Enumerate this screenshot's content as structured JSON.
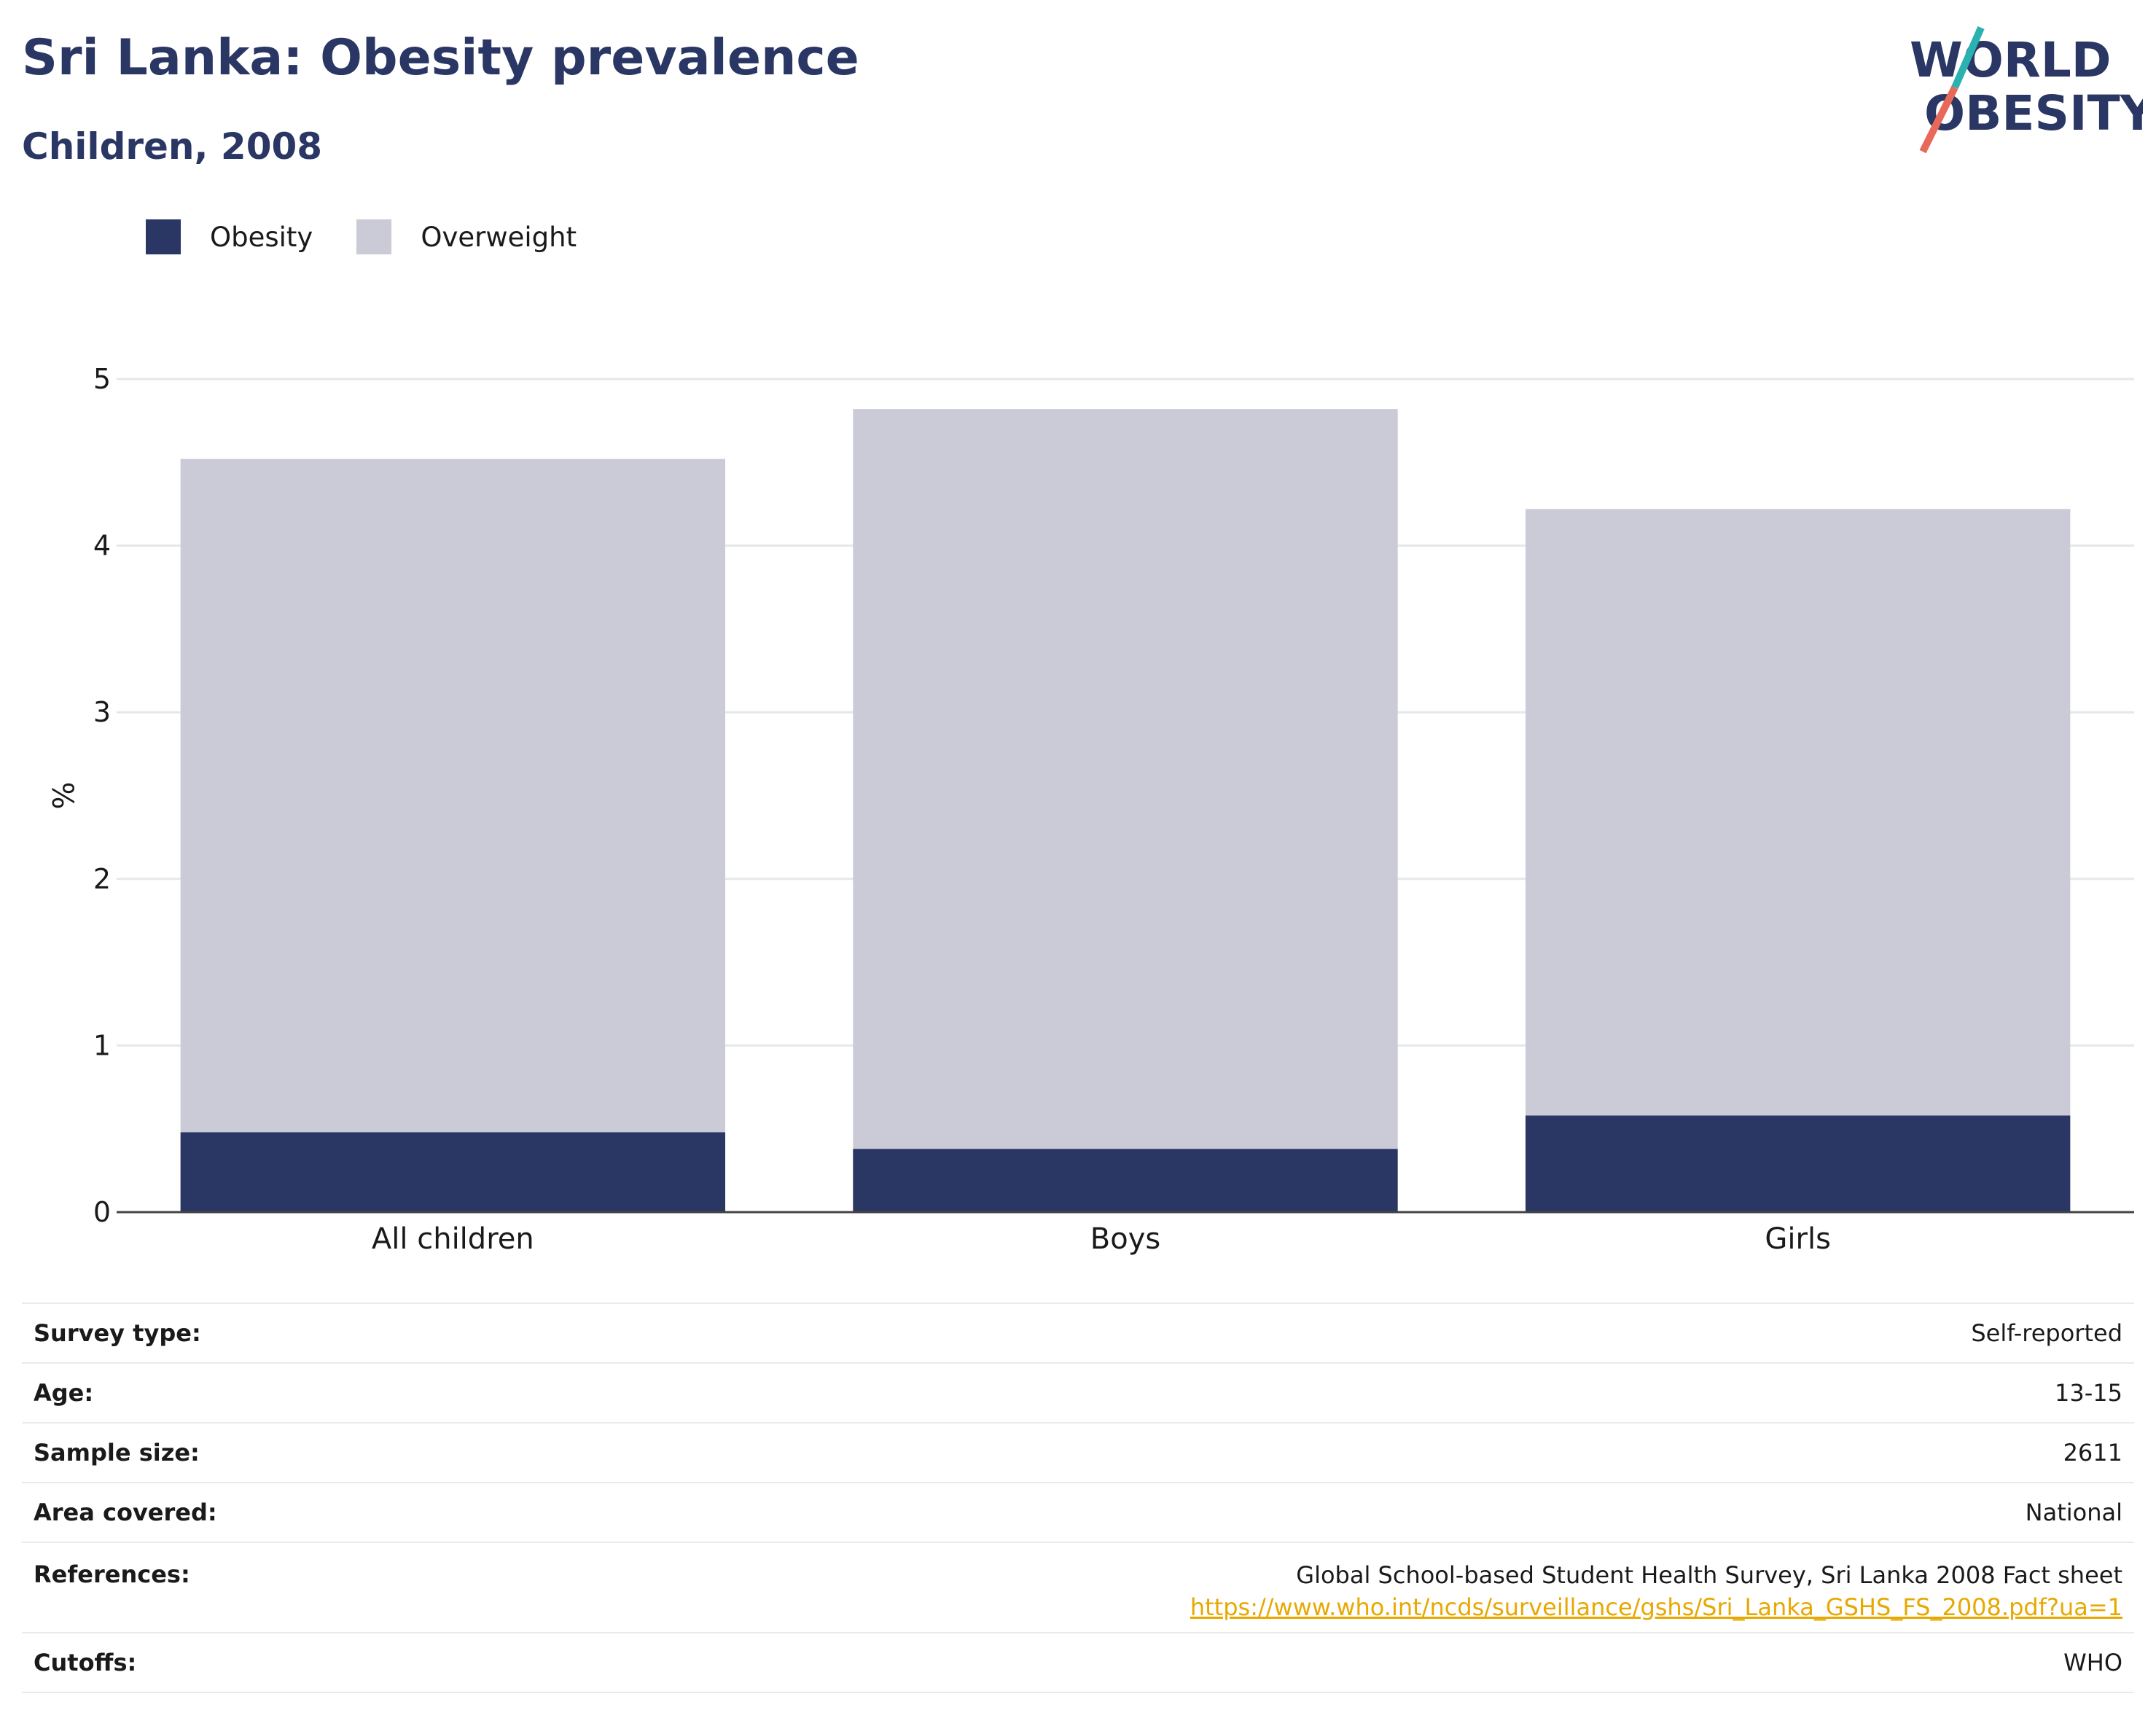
{
  "header": {
    "title": "Sri Lanka: Obesity prevalence",
    "subtitle": "Children, 2008",
    "logo_line1": "WORLD",
    "logo_line2": "OBESITY"
  },
  "colors": {
    "obesity": "#2a3663",
    "overweight": "#cacbd6",
    "link": "#e7a800",
    "logo_teal": "#2ab1b0",
    "logo_coral": "#e8695a"
  },
  "chart_data": {
    "type": "bar",
    "stacked": true,
    "categories": [
      "All children",
      "Boys",
      "Girls"
    ],
    "series": [
      {
        "name": "Obesity",
        "values": [
          0.48,
          0.38,
          0.58
        ]
      },
      {
        "name": "Overweight",
        "values": [
          4.04,
          4.44,
          3.64
        ]
      }
    ],
    "ylabel": "%",
    "ylim": [
      0,
      5
    ],
    "yticks": [
      0,
      1,
      2,
      3,
      4,
      5
    ],
    "grid": true,
    "legend": "top-left"
  },
  "info": {
    "rows": [
      {
        "key": "Survey type:",
        "value": "Self-reported"
      },
      {
        "key": "Age:",
        "value": "13-15"
      },
      {
        "key": "Sample size:",
        "value": "2611"
      },
      {
        "key": "Area covered:",
        "value": "National"
      },
      {
        "key": "References:",
        "value": "Global School-based Student Health Survey, Sri Lanka 2008 Fact sheet",
        "link": "https://www.who.int/ncds/surveillance/gshs/Sri_Lanka_GSHS_FS_2008.pdf?ua=1"
      },
      {
        "key": "Cutoffs:",
        "value": "WHO"
      }
    ]
  }
}
